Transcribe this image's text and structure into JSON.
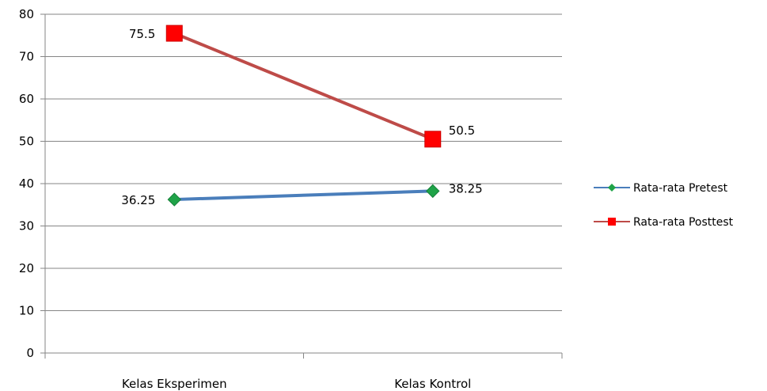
{
  "chart_data": {
    "type": "line",
    "title": "",
    "xlabel": "",
    "ylabel": "",
    "categories": [
      "Kelas Eksperimen",
      "Kelas Kontrol"
    ],
    "ylim": [
      0,
      80
    ],
    "y_ticks": [
      0,
      10,
      20,
      30,
      40,
      50,
      60,
      70,
      80
    ],
    "y_tick_labels": [
      "0",
      "10",
      "20",
      "30",
      "40",
      "50",
      "60",
      "70",
      "80"
    ],
    "grid": true,
    "legend_position": "right",
    "series": [
      {
        "name": "Rata-rata Pretest",
        "values": [
          36.25,
          38.25
        ],
        "labels": [
          "36.25",
          "38.25"
        ],
        "line_color": "#4a7ebb",
        "marker": "diamond",
        "marker_color": "#1fa348"
      },
      {
        "name": "Rata-rata Posttest",
        "values": [
          75.5,
          50.5
        ],
        "labels": [
          "75.5",
          "50.5"
        ],
        "line_color": "#be4b48",
        "marker": "square",
        "marker_color": "#ff0000"
      }
    ]
  }
}
